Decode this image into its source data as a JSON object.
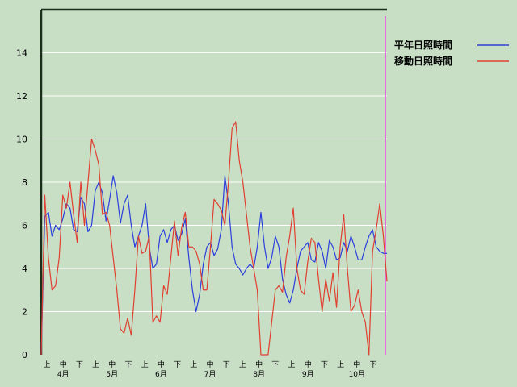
{
  "chart_data": {
    "type": "line",
    "ylim": [
      0,
      16
    ],
    "yticks": [
      0,
      2,
      4,
      6,
      8,
      10,
      12,
      14
    ],
    "grid": true,
    "legend_position": "top-right",
    "x_sub_labels": [
      "上",
      "中",
      "下",
      "上",
      "中",
      "下",
      "上",
      "中",
      "下",
      "上",
      "中",
      "下",
      "上",
      "中",
      "下",
      "上",
      "中",
      "下",
      "上",
      "中",
      "下"
    ],
    "month_labels": [
      "4月",
      "5月",
      "6月",
      "7月",
      "8月",
      "9月",
      "10月"
    ],
    "series": [
      {
        "name": "平年日照時間",
        "color": "#2b3fdc",
        "values": [
          0.0,
          6.4,
          6.6,
          5.5,
          6.0,
          5.8,
          6.3,
          7.0,
          6.8,
          5.8,
          5.7,
          7.3,
          7.0,
          5.7,
          6.0,
          7.6,
          8.0,
          7.5,
          6.2,
          7.2,
          8.3,
          7.5,
          6.1,
          7.0,
          7.4,
          6.0,
          5.0,
          5.5,
          6.0,
          7.0,
          5.0,
          4.0,
          4.2,
          5.5,
          5.8,
          5.2,
          5.8,
          6.0,
          5.3,
          5.6,
          6.3,
          4.5,
          3.0,
          2.0,
          2.8,
          4.2,
          5.0,
          5.2,
          4.6,
          4.9,
          5.8,
          8.3,
          7.0,
          5.0,
          4.2,
          4.0,
          3.7,
          4.0,
          4.2,
          4.0,
          5.0,
          6.6,
          5.0,
          4.0,
          4.5,
          5.5,
          5.0,
          3.5,
          2.8,
          2.4,
          3.0,
          4.0,
          4.8,
          5.0,
          5.2,
          4.4,
          4.3,
          5.2,
          4.8,
          4.0,
          5.3,
          5.0,
          4.4,
          4.5,
          5.2,
          4.8,
          5.5,
          5.0,
          4.4,
          4.4,
          5.0,
          5.5,
          5.8,
          5.0,
          4.8,
          4.7,
          4.7
        ]
      },
      {
        "name": "移動日照時間",
        "color": "#e04030",
        "values": [
          0.0,
          7.4,
          4.5,
          3.0,
          3.2,
          4.5,
          7.4,
          6.8,
          8.0,
          6.5,
          5.2,
          8.0,
          6.0,
          8.0,
          10.0,
          9.5,
          8.8,
          6.5,
          6.6,
          6.0,
          4.5,
          3.0,
          1.2,
          1.0,
          1.7,
          0.9,
          3.0,
          5.5,
          4.7,
          4.8,
          5.5,
          1.5,
          1.8,
          1.5,
          3.2,
          2.8,
          4.5,
          6.2,
          4.6,
          5.9,
          6.6,
          5.0,
          5.0,
          4.8,
          4.2,
          3.0,
          3.0,
          5.0,
          7.2,
          7.0,
          6.7,
          6.0,
          8.0,
          10.5,
          10.8,
          9.0,
          8.0,
          6.5,
          5.0,
          4.0,
          3.0,
          0.0,
          0.0,
          0.0,
          1.5,
          3.0,
          3.2,
          2.9,
          4.5,
          5.5,
          6.8,
          4.0,
          3.0,
          2.8,
          4.3,
          5.4,
          5.2,
          3.5,
          2.0,
          3.5,
          2.5,
          3.8,
          2.2,
          5.0,
          6.5,
          4.0,
          2.0,
          2.3,
          3.0,
          2.0,
          1.5,
          0.0,
          4.8,
          5.8,
          7.0,
          5.5,
          3.4
        ]
      }
    ]
  }
}
